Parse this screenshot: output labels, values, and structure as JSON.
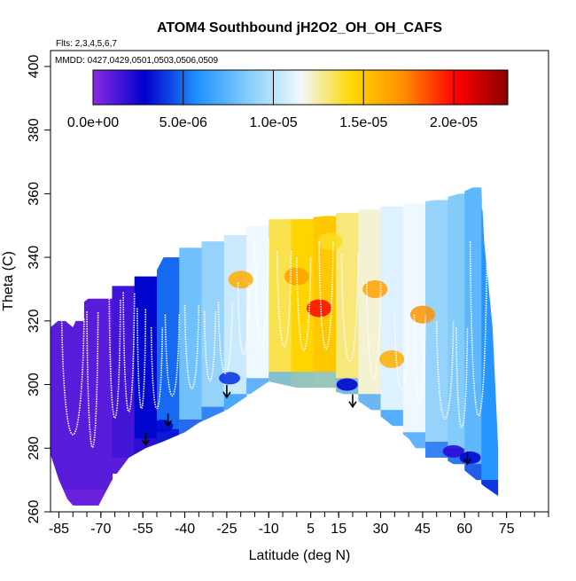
{
  "chart_data": {
    "type": "heatmap",
    "title": "ATOM4 Southbound jH2O2_OH_OH_CAFS",
    "flights_label": "Flts: 2,3,4,5,6,7",
    "dates_label": "MMDD: 0427,0429,0501,0503,0506,0509",
    "xlabel": "Latitude (deg N)",
    "ylabel": "Theta (C)",
    "xlim": [
      -88,
      90
    ],
    "ylim": [
      260,
      405
    ],
    "x_ticks": [
      -85,
      -70,
      -55,
      -40,
      -25,
      -10,
      5,
      15,
      30,
      45,
      60,
      75
    ],
    "x_tick_labels": [
      "-85",
      "-70",
      "-55",
      "-40",
      "-25",
      "-10",
      "5",
      "15",
      "30",
      "45",
      "60",
      "75"
    ],
    "y_ticks": [
      260,
      280,
      300,
      320,
      340,
      360,
      380,
      400
    ],
    "y_tick_labels": [
      "260",
      "280",
      "300",
      "320",
      "340",
      "360",
      "380",
      "400"
    ],
    "colorbar": {
      "min": 0,
      "max": 2.3e-05,
      "ticks": [
        0,
        5e-06,
        1e-05,
        1.5e-05,
        2e-05
      ],
      "tick_labels": [
        "0.0e+00",
        "5.0e-06",
        "1.0e-05",
        "1.5e-05",
        "2.0e-05"
      ],
      "colors": [
        "#8a2be2",
        "#0000cd",
        "#1e90ff",
        "#87cefa",
        "#f0f8ff",
        "#ffd700",
        "#ff8c00",
        "#ff0000",
        "#8b0000"
      ]
    },
    "upper_envelope": [
      [
        -88,
        318
      ],
      [
        -84,
        321
      ],
      [
        -80,
        318
      ],
      [
        -76,
        326
      ],
      [
        -70,
        330
      ],
      [
        -62,
        332
      ],
      [
        -57,
        336
      ],
      [
        -50,
        336
      ],
      [
        -47,
        341
      ],
      [
        -44,
        342
      ],
      [
        -38,
        345
      ],
      [
        -30,
        347
      ],
      [
        -20,
        349
      ],
      [
        -10,
        352
      ],
      [
        0,
        352
      ],
      [
        10,
        353
      ],
      [
        20,
        355
      ],
      [
        30,
        356
      ],
      [
        40,
        357
      ],
      [
        50,
        358
      ],
      [
        58,
        360
      ],
      [
        63,
        362
      ],
      [
        66,
        362
      ],
      [
        67,
        345
      ],
      [
        70,
        318
      ],
      [
        72,
        280
      ],
      [
        72,
        265
      ]
    ],
    "lower_envelope": [
      [
        -88,
        278
      ],
      [
        -85,
        270
      ],
      [
        -82,
        264
      ],
      [
        -78,
        260
      ],
      [
        -72,
        260
      ],
      [
        -66,
        270
      ],
      [
        -60,
        277
      ],
      [
        -54,
        280
      ],
      [
        -48,
        282
      ],
      [
        -40,
        285
      ],
      [
        -35,
        288
      ],
      [
        -25,
        292
      ],
      [
        -15,
        298
      ],
      [
        -10,
        301
      ],
      [
        0,
        299
      ],
      [
        10,
        299
      ],
      [
        20,
        296
      ],
      [
        30,
        290
      ],
      [
        40,
        283
      ],
      [
        45,
        277
      ],
      [
        52,
        277
      ],
      [
        60,
        273
      ],
      [
        67,
        268
      ],
      [
        72,
        265
      ]
    ],
    "columns": [
      {
        "x0": -88,
        "x1": -76,
        "low": 262,
        "high": 320,
        "value": 1e-06
      },
      {
        "x0": -76,
        "x1": -66,
        "low": 262,
        "high": 327,
        "value": 1e-06
      },
      {
        "x0": -66,
        "x1": -58,
        "low": 272,
        "high": 331,
        "value": 1.5e-06
      },
      {
        "x0": -58,
        "x1": -50,
        "low": 278,
        "high": 334,
        "value": 3e-06
      },
      {
        "x0": -50,
        "x1": -42,
        "low": 281,
        "high": 340,
        "value": 5e-06
      },
      {
        "x0": -42,
        "x1": -34,
        "low": 284,
        "high": 343,
        "value": 8e-06
      },
      {
        "x0": -34,
        "x1": -26,
        "low": 288,
        "high": 345,
        "value": 9e-06
      },
      {
        "x0": -26,
        "x1": -18,
        "low": 292,
        "high": 347,
        "value": 1.05e-05
      },
      {
        "x0": -18,
        "x1": -10,
        "low": 297,
        "high": 350,
        "value": 1.15e-05
      },
      {
        "x0": -10,
        "x1": -2,
        "low": 299,
        "high": 352,
        "value": 1.35e-05
      },
      {
        "x0": -2,
        "x1": 6,
        "low": 299,
        "high": 352,
        "value": 1.45e-05
      },
      {
        "x0": 6,
        "x1": 14,
        "low": 299,
        "high": 353,
        "value": 1.5e-05
      },
      {
        "x0": 14,
        "x1": 22,
        "low": 297,
        "high": 354,
        "value": 1.3e-05
      },
      {
        "x0": 22,
        "x1": 30,
        "low": 292,
        "high": 355,
        "value": 1.2e-05
      },
      {
        "x0": 30,
        "x1": 38,
        "low": 287,
        "high": 356,
        "value": 1.1e-05
      },
      {
        "x0": 38,
        "x1": 46,
        "low": 280,
        "high": 357,
        "value": 1.15e-05
      },
      {
        "x0": 46,
        "x1": 54,
        "low": 277,
        "high": 358,
        "value": 9e-06
      },
      {
        "x0": 54,
        "x1": 60,
        "low": 275,
        "high": 360,
        "value": 8.5e-06
      },
      {
        "x0": 60,
        "x1": 66,
        "low": 270,
        "high": 362,
        "value": 7.5e-06
      },
      {
        "x0": 66,
        "x1": 72,
        "low": 265,
        "high": 355,
        "value": 6e-06
      }
    ],
    "hotspots": [
      {
        "x": -20,
        "y": 333,
        "value": 1.6e-05
      },
      {
        "x": 8,
        "y": 324,
        "value": 2e-05
      },
      {
        "x": 0,
        "y": 334,
        "value": 1.65e-05
      },
      {
        "x": 28,
        "y": 330,
        "value": 1.65e-05
      },
      {
        "x": 34,
        "y": 308,
        "value": 1.6e-05
      },
      {
        "x": 45,
        "y": 322,
        "value": 1.7e-05
      },
      {
        "x": 12,
        "y": 345,
        "value": 1.4e-05
      }
    ],
    "lowspots": [
      {
        "x": -24,
        "y": 302,
        "value": 4e-06
      },
      {
        "x": 18,
        "y": 300,
        "value": 3e-06
      },
      {
        "x": 56,
        "y": 279,
        "value": 2e-06
      },
      {
        "x": 62,
        "y": 277,
        "value": 3e-06
      },
      {
        "x": -48,
        "y": 287,
        "value": 3e-06
      }
    ],
    "profile_arrows": [
      {
        "x": -54,
        "theta": 281
      },
      {
        "x": -46,
        "theta": 287
      },
      {
        "x": -25,
        "theta": 296
      },
      {
        "x": 20,
        "theta": 293
      },
      {
        "x": 61,
        "theta": 275
      }
    ],
    "flight_tracks": [
      {
        "x0": -84,
        "x1": -76,
        "low": 272,
        "high": 321
      },
      {
        "x0": -75,
        "x1": -71,
        "low": 266,
        "high": 323
      },
      {
        "x0": -67,
        "x1": -63,
        "low": 277,
        "high": 327
      },
      {
        "x0": -62,
        "x1": -58,
        "low": 279,
        "high": 329
      },
      {
        "x0": -57,
        "x1": -54,
        "low": 282,
        "high": 324
      },
      {
        "x0": -52,
        "x1": -48,
        "low": 284,
        "high": 318
      },
      {
        "x0": -47,
        "x1": -42,
        "low": 288,
        "high": 322
      },
      {
        "x0": -40,
        "x1": -35,
        "low": 290,
        "high": 325
      },
      {
        "x0": -33,
        "x1": -29,
        "low": 294,
        "high": 323
      },
      {
        "x0": -28,
        "x1": -23,
        "low": 296,
        "high": 326
      },
      {
        "x0": -21,
        "x1": -17,
        "low": 302,
        "high": 332
      },
      {
        "x0": -15,
        "x1": -10,
        "low": 301,
        "high": 346
      },
      {
        "x0": -7,
        "x1": -2,
        "low": 302,
        "high": 342
      },
      {
        "x0": 0,
        "x1": 5,
        "low": 301,
        "high": 340
      },
      {
        "x0": 8,
        "x1": 13,
        "low": 300,
        "high": 345
      },
      {
        "x0": 16,
        "x1": 22,
        "low": 296,
        "high": 341
      },
      {
        "x0": 25,
        "x1": 30,
        "low": 292,
        "high": 332
      },
      {
        "x0": 35,
        "x1": 40,
        "low": 290,
        "high": 323
      },
      {
        "x0": 42,
        "x1": 46,
        "low": 285,
        "high": 322
      },
      {
        "x0": 50,
        "x1": 56,
        "low": 279,
        "high": 320
      },
      {
        "x0": 57,
        "x1": 61,
        "low": 276,
        "high": 318
      },
      {
        "x0": 62,
        "x1": 68,
        "low": 272,
        "high": 345
      }
    ]
  }
}
